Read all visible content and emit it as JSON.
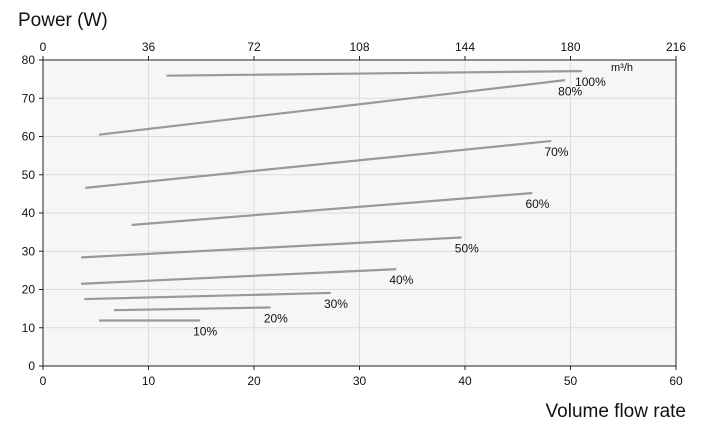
{
  "chart_data": {
    "type": "line",
    "ylabel": "Power (W)",
    "xlabel": "Volume flow rate",
    "x_unit": "m³/h",
    "xlim": [
      0,
      60
    ],
    "ylim": [
      0,
      80
    ],
    "x_ticks": [
      0,
      10,
      20,
      30,
      40,
      50,
      60
    ],
    "y_ticks": [
      0,
      10,
      20,
      30,
      40,
      50,
      60,
      70,
      80
    ],
    "x2_ticks": [
      0,
      36,
      72,
      108,
      144,
      180,
      216
    ],
    "x2lim": [
      0,
      216
    ],
    "grid": true,
    "background": "#f6f6f6",
    "line_color": "#999999",
    "series": [
      {
        "name": "10%",
        "x": [
          5.4,
          14.8
        ],
        "y": [
          11.9,
          11.9
        ]
      },
      {
        "name": "20%",
        "x": [
          6.8,
          21.5
        ],
        "y": [
          14.6,
          15.3
        ]
      },
      {
        "name": "30%",
        "x": [
          4.0,
          27.2
        ],
        "y": [
          17.5,
          19.1
        ]
      },
      {
        "name": "40%",
        "x": [
          3.7,
          33.4
        ],
        "y": [
          21.5,
          25.3
        ]
      },
      {
        "name": "50%",
        "x": [
          3.7,
          39.6
        ],
        "y": [
          28.4,
          33.6
        ]
      },
      {
        "name": "60%",
        "x": [
          8.5,
          46.3
        ],
        "y": [
          36.9,
          45.2
        ]
      },
      {
        "name": "70%",
        "x": [
          4.1,
          48.1
        ],
        "y": [
          46.6,
          58.8
        ]
      },
      {
        "name": "80%",
        "x": [
          5.4,
          49.4
        ],
        "y": [
          60.5,
          74.7
        ]
      },
      {
        "name": "100%",
        "x": [
          11.8,
          51.0
        ],
        "y": [
          75.9,
          77.1
        ]
      }
    ]
  }
}
